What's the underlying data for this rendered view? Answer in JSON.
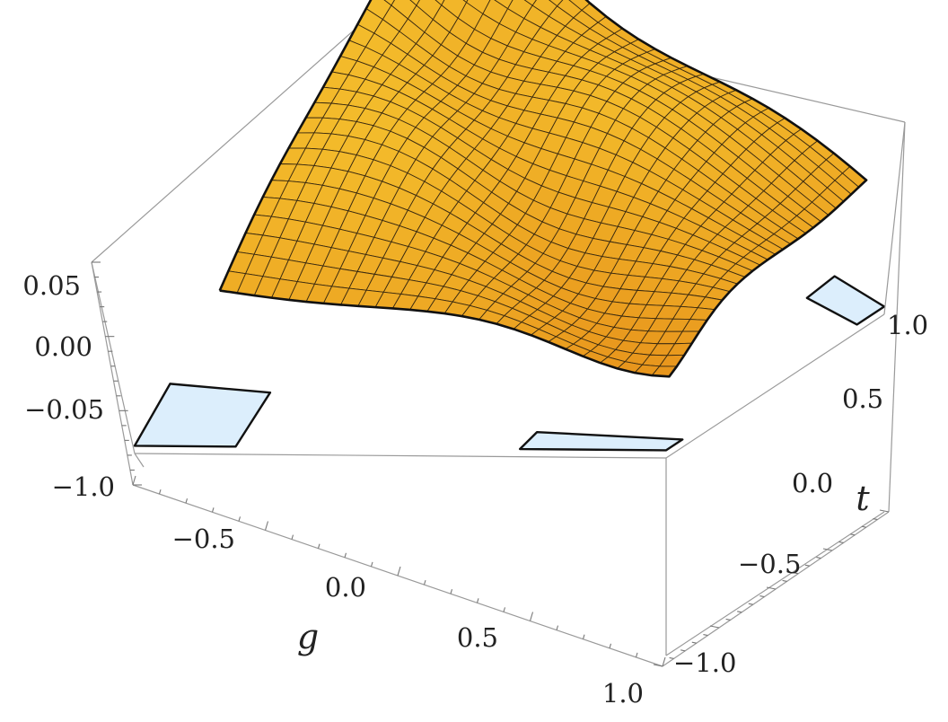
{
  "chart_data": {
    "type": "surface3d",
    "x_axis": {
      "label": "g",
      "range": [
        -1.0,
        1.0
      ],
      "ticks": [
        "−1.0",
        "−0.5",
        "0.0",
        "0.5",
        "1.0"
      ]
    },
    "y_axis": {
      "label": "t",
      "range": [
        -1.0,
        1.0
      ],
      "ticks": [
        "−1.0",
        "−0.5",
        "0.0",
        "0.5",
        "1.0"
      ]
    },
    "z_axis": {
      "label": "",
      "range": [
        -0.075,
        0.07
      ],
      "ticks": [
        "−0.05",
        "0.00",
        "0.05"
      ]
    },
    "grid_resolution": 26,
    "surface": {
      "shape": "saddle-like surface peaking near (g=-1, t=1) and dipping along the edges; flat floor near the corners |g|,|t| close to 1",
      "z_max_approx": 0.07,
      "z_min_approx": -0.07
    },
    "colors": {
      "surface_low": "#e07b12",
      "surface_high": "#ffe23a",
      "floor": "#dceefc"
    }
  }
}
